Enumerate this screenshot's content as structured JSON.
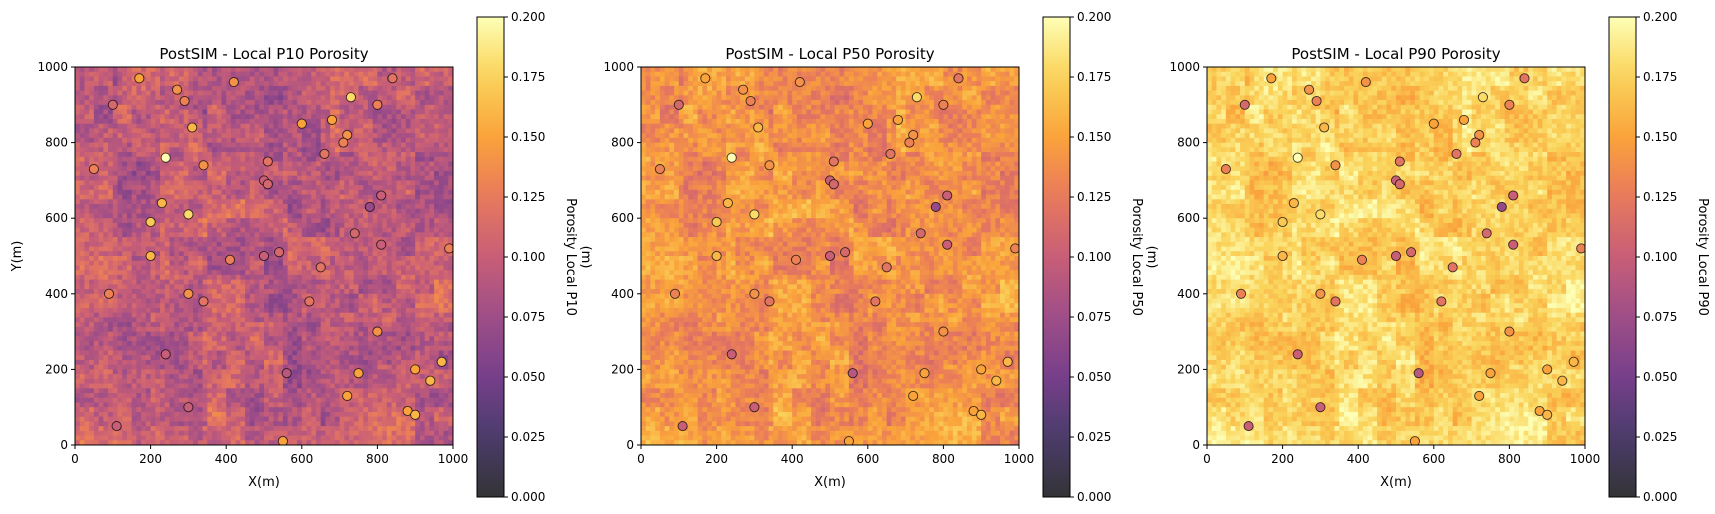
{
  "chart_data": [
    {
      "type": "heatmap",
      "title": "PostSIM - Local P10 Porosity",
      "xlabel": "X(m)",
      "ylabel": "Y(m)",
      "colorbar_label": "Porosity Local P10",
      "xlim": [
        0,
        1000
      ],
      "ylim": [
        0,
        1000
      ],
      "xticks": [
        "0",
        "200",
        "400",
        "600",
        "800",
        "1000"
      ],
      "yticks": [
        "0",
        "200",
        "400",
        "600",
        "800",
        "1000"
      ],
      "clim": [
        0.0,
        0.2
      ],
      "cticks": [
        "0.000",
        "0.025",
        "0.050",
        "0.075",
        "0.100",
        "0.125",
        "0.150",
        "0.175",
        "0.200"
      ],
      "grid": false,
      "base_level": 0.095,
      "level_spread": 0.03
    },
    {
      "type": "heatmap",
      "title": "PostSIM - Local P50 Porosity",
      "xlabel": "X(m)",
      "ylabel": "",
      "colorbar_label": "Porosity Local P50",
      "xlim": [
        0,
        1000
      ],
      "ylim": [
        0,
        1000
      ],
      "xticks": [
        "0",
        "200",
        "400",
        "600",
        "800",
        "1000"
      ],
      "yticks": [
        "0",
        "200",
        "400",
        "600",
        "800",
        "1000"
      ],
      "clim": [
        0.0,
        0.2
      ],
      "cticks": [
        "0.000",
        "0.025",
        "0.050",
        "0.075",
        "0.100",
        "0.125",
        "0.150",
        "0.175",
        "0.200"
      ],
      "grid": false,
      "base_level": 0.14,
      "level_spread": 0.025
    },
    {
      "type": "heatmap",
      "title": "PostSIM - Local P90 Porosity",
      "xlabel": "X(m)",
      "ylabel": "",
      "colorbar_label": "Porosity Local P90",
      "xlim": [
        0,
        1000
      ],
      "ylim": [
        0,
        1000
      ],
      "xticks": [
        "0",
        "200",
        "400",
        "600",
        "800",
        "1000"
      ],
      "yticks": [
        "0",
        "200",
        "400",
        "600",
        "800",
        "1000"
      ],
      "clim": [
        0.0,
        0.2
      ],
      "cticks": [
        "0.000",
        "0.025",
        "0.050",
        "0.075",
        "0.100",
        "0.125",
        "0.150",
        "0.175",
        "0.200"
      ],
      "grid": false,
      "base_level": 0.175,
      "level_spread": 0.022
    }
  ],
  "overlap_label": "(m)",
  "colormap": "inferno",
  "wells": [
    {
      "x": 170,
      "y": 970,
      "v": 0.15
    },
    {
      "x": 270,
      "y": 940,
      "v": 0.14
    },
    {
      "x": 420,
      "y": 960,
      "v": 0.14
    },
    {
      "x": 840,
      "y": 970,
      "v": 0.12
    },
    {
      "x": 100,
      "y": 900,
      "v": 0.11
    },
    {
      "x": 290,
      "y": 910,
      "v": 0.13
    },
    {
      "x": 730,
      "y": 920,
      "v": 0.18
    },
    {
      "x": 800,
      "y": 900,
      "v": 0.13
    },
    {
      "x": 310,
      "y": 840,
      "v": 0.16
    },
    {
      "x": 600,
      "y": 850,
      "v": 0.15
    },
    {
      "x": 680,
      "y": 860,
      "v": 0.15
    },
    {
      "x": 720,
      "y": 820,
      "v": 0.14
    },
    {
      "x": 710,
      "y": 800,
      "v": 0.13
    },
    {
      "x": 50,
      "y": 730,
      "v": 0.13
    },
    {
      "x": 240,
      "y": 760,
      "v": 0.2
    },
    {
      "x": 340,
      "y": 740,
      "v": 0.14
    },
    {
      "x": 500,
      "y": 700,
      "v": 0.1
    },
    {
      "x": 510,
      "y": 690,
      "v": 0.11
    },
    {
      "x": 510,
      "y": 750,
      "v": 0.12
    },
    {
      "x": 660,
      "y": 770,
      "v": 0.12
    },
    {
      "x": 230,
      "y": 640,
      "v": 0.16
    },
    {
      "x": 300,
      "y": 610,
      "v": 0.18
    },
    {
      "x": 200,
      "y": 590,
      "v": 0.17
    },
    {
      "x": 780,
      "y": 630,
      "v": 0.07
    },
    {
      "x": 810,
      "y": 660,
      "v": 0.1
    },
    {
      "x": 200,
      "y": 500,
      "v": 0.16
    },
    {
      "x": 500,
      "y": 500,
      "v": 0.1
    },
    {
      "x": 540,
      "y": 510,
      "v": 0.11
    },
    {
      "x": 410,
      "y": 490,
      "v": 0.13
    },
    {
      "x": 740,
      "y": 560,
      "v": 0.11
    },
    {
      "x": 810,
      "y": 530,
      "v": 0.1
    },
    {
      "x": 990,
      "y": 520,
      "v": 0.13
    },
    {
      "x": 650,
      "y": 470,
      "v": 0.12
    },
    {
      "x": 90,
      "y": 400,
      "v": 0.13
    },
    {
      "x": 300,
      "y": 400,
      "v": 0.14
    },
    {
      "x": 340,
      "y": 380,
      "v": 0.12
    },
    {
      "x": 620,
      "y": 380,
      "v": 0.12
    },
    {
      "x": 800,
      "y": 300,
      "v": 0.14
    },
    {
      "x": 240,
      "y": 240,
      "v": 0.1
    },
    {
      "x": 560,
      "y": 190,
      "v": 0.09
    },
    {
      "x": 750,
      "y": 190,
      "v": 0.15
    },
    {
      "x": 900,
      "y": 200,
      "v": 0.15
    },
    {
      "x": 970,
      "y": 220,
      "v": 0.16
    },
    {
      "x": 720,
      "y": 130,
      "v": 0.15
    },
    {
      "x": 940,
      "y": 170,
      "v": 0.16
    },
    {
      "x": 300,
      "y": 100,
      "v": 0.1
    },
    {
      "x": 880,
      "y": 90,
      "v": 0.15
    },
    {
      "x": 900,
      "y": 80,
      "v": 0.16
    },
    {
      "x": 110,
      "y": 50,
      "v": 0.1
    },
    {
      "x": 550,
      "y": 10,
      "v": 0.15
    }
  ]
}
